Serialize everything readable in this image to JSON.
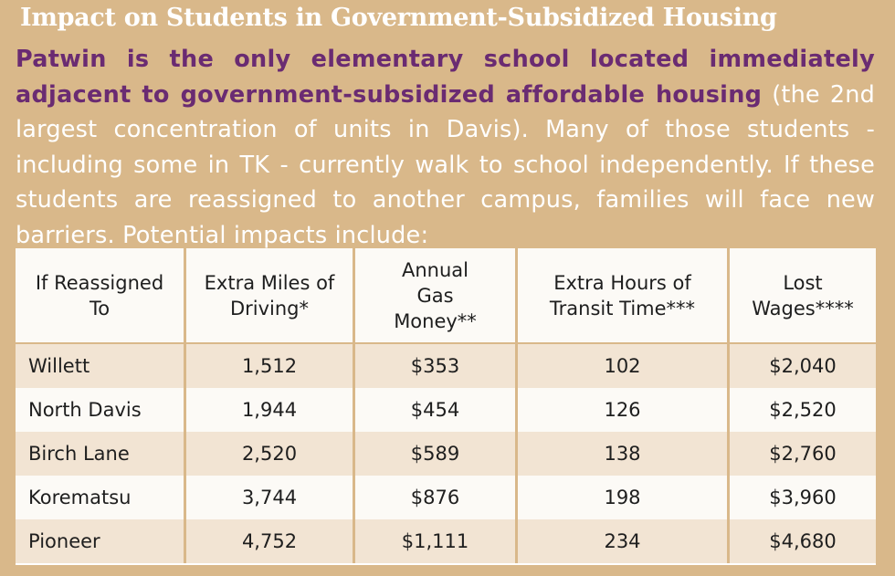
{
  "title": "Impact on Students in Government-Subsidized Housing",
  "paragraph": {
    "highlight": "Patwin is the only elementary school located immediately adjacent to government-subsidized affordable housing",
    "rest": " (the 2nd largest concentration of units in Davis).  Many of those students - including some in TK - currently walk to school independently.  If these students are reassigned to another campus, families will face new barriers.  Potential impacts include:"
  },
  "table": {
    "headers": [
      "If Reassigned To",
      "Extra Miles of Driving*",
      "Annual Gas Money**",
      "Extra Hours of Transit Time***",
      "Lost Wages****"
    ],
    "rows": [
      [
        "Willett",
        "1,512",
        "$353",
        "102",
        "$2,040"
      ],
      [
        "North Davis",
        "1,944",
        "$454",
        "126",
        "$2,520"
      ],
      [
        "Birch Lane",
        "2,520",
        "$589",
        "138",
        "$2,760"
      ],
      [
        "Korematsu",
        "3,744",
        "$876",
        "198",
        "$3,960"
      ],
      [
        "Pioneer",
        "4,752",
        "$1,111",
        "234",
        "$4,680"
      ]
    ]
  },
  "colors": {
    "background": "#d9b88a",
    "highlight_text": "#6a2b72",
    "row_shaded": "#f2e4d3",
    "row_light": "#fcfaf6"
  }
}
